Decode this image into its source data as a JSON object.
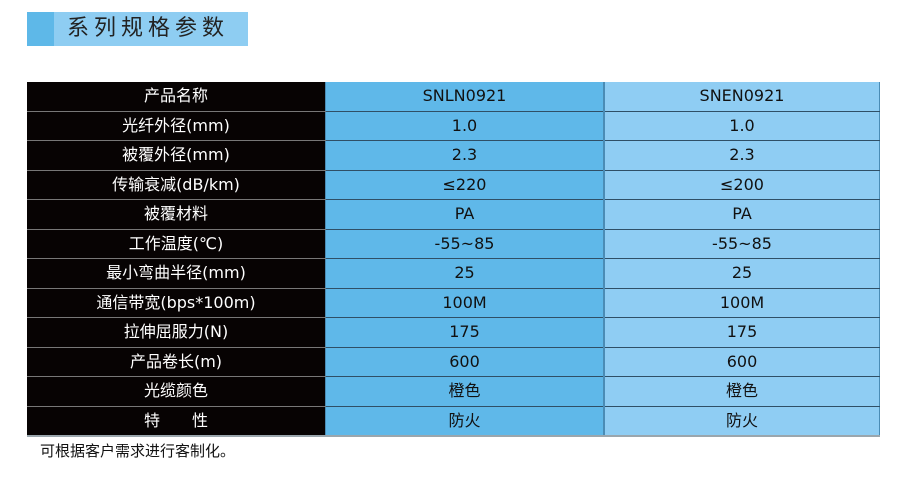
{
  "title": "系列规格参数",
  "colors": {
    "accent_dark": "#5eb8e8",
    "accent_light": "#8ecdf2",
    "label_bg": "#070303"
  },
  "table": {
    "rows": [
      {
        "label": "产品名称",
        "v1": "SNLN0921",
        "v2": "SNEN0921"
      },
      {
        "label": "光纤外径(mm)",
        "v1": "1.0",
        "v2": "1.0"
      },
      {
        "label": "被覆外径(mm)",
        "v1": "2.3",
        "v2": "2.3"
      },
      {
        "label": "传输衰减(dB/km)",
        "v1": "≤220",
        "v2": "≤200"
      },
      {
        "label": "被覆材料",
        "v1": "PA",
        "v2": "PA"
      },
      {
        "label": "工作温度(℃)",
        "v1": "-55~85",
        "v2": "-55~85"
      },
      {
        "label": "最小弯曲半径(mm)",
        "v1": "25",
        "v2": "25"
      },
      {
        "label": "通信带宽(bps*100m)",
        "v1": "100M",
        "v2": "100M"
      },
      {
        "label": "拉伸屈服力(N)",
        "v1": "175",
        "v2": "175"
      },
      {
        "label": "产品卷长(m)",
        "v1": "600",
        "v2": "600"
      },
      {
        "label": "光缆颜色",
        "v1": "橙色",
        "v2": "橙色"
      },
      {
        "label": "特　　性",
        "v1": "防火",
        "v2": "防火"
      }
    ]
  },
  "note": "可根据客户需求进行客制化。"
}
